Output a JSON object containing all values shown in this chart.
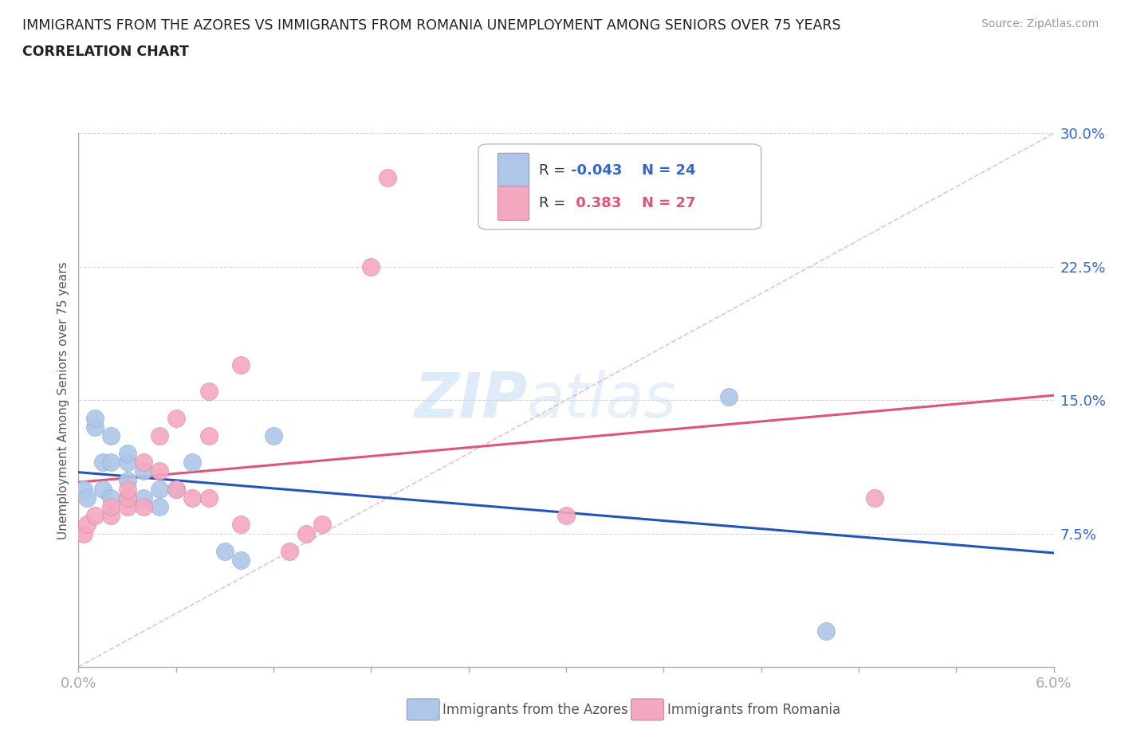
{
  "title_line1": "IMMIGRANTS FROM THE AZORES VS IMMIGRANTS FROM ROMANIA UNEMPLOYMENT AMONG SENIORS OVER 75 YEARS",
  "title_line2": "CORRELATION CHART",
  "source": "Source: ZipAtlas.com",
  "ylabel": "Unemployment Among Seniors over 75 years",
  "x_min": 0.0,
  "x_max": 0.06,
  "y_min": 0.0,
  "y_max": 0.3,
  "x_ticks": [
    0.0,
    0.006,
    0.012,
    0.018,
    0.024,
    0.03,
    0.036,
    0.042,
    0.048,
    0.054,
    0.06
  ],
  "x_tick_labels_show": [
    "0.0%",
    "",
    "",
    "",
    "",
    "",
    "",
    "",
    "",
    "",
    "6.0%"
  ],
  "y_ticks": [
    0.0,
    0.075,
    0.15,
    0.225,
    0.3
  ],
  "y_tick_labels_show": [
    "",
    "7.5%",
    "15.0%",
    "22.5%",
    "30.0%"
  ],
  "azores_color": "#aec6e8",
  "romania_color": "#f4a8c0",
  "azores_line_color": "#2255bb",
  "romania_line_color": "#e05575",
  "diag_line_color": "#cccccc",
  "azores_R": "-0.043",
  "azores_N": "24",
  "romania_R": "0.383",
  "romania_N": "27",
  "legend_text_color": "#3366cc",
  "legend_R_color_azores": "#3366cc",
  "legend_R_color_romania": "#e05575",
  "azores_x": [
    0.0003,
    0.0005,
    0.001,
    0.001,
    0.0015,
    0.0015,
    0.002,
    0.002,
    0.002,
    0.003,
    0.003,
    0.003,
    0.003,
    0.004,
    0.004,
    0.005,
    0.005,
    0.006,
    0.007,
    0.009,
    0.01,
    0.012,
    0.04,
    0.046
  ],
  "azores_y": [
    0.1,
    0.095,
    0.135,
    0.14,
    0.1,
    0.115,
    0.095,
    0.115,
    0.13,
    0.095,
    0.105,
    0.115,
    0.12,
    0.095,
    0.11,
    0.09,
    0.1,
    0.1,
    0.115,
    0.065,
    0.06,
    0.13,
    0.152,
    0.02
  ],
  "romania_x": [
    0.0003,
    0.0005,
    0.001,
    0.002,
    0.002,
    0.003,
    0.003,
    0.003,
    0.004,
    0.004,
    0.005,
    0.005,
    0.006,
    0.006,
    0.007,
    0.008,
    0.008,
    0.008,
    0.01,
    0.01,
    0.013,
    0.014,
    0.015,
    0.018,
    0.019,
    0.03,
    0.049
  ],
  "romania_y": [
    0.075,
    0.08,
    0.085,
    0.085,
    0.09,
    0.09,
    0.095,
    0.1,
    0.09,
    0.115,
    0.11,
    0.13,
    0.14,
    0.1,
    0.095,
    0.095,
    0.13,
    0.155,
    0.17,
    0.08,
    0.065,
    0.075,
    0.08,
    0.225,
    0.275,
    0.085,
    0.095
  ],
  "watermark_zip": "ZIP",
  "watermark_atlas": "atlas",
  "background_color": "#ffffff",
  "grid_color": "#cccccc",
  "bottom_legend_azores": "Immigrants from the Azores",
  "bottom_legend_romania": "Immigrants from Romania"
}
